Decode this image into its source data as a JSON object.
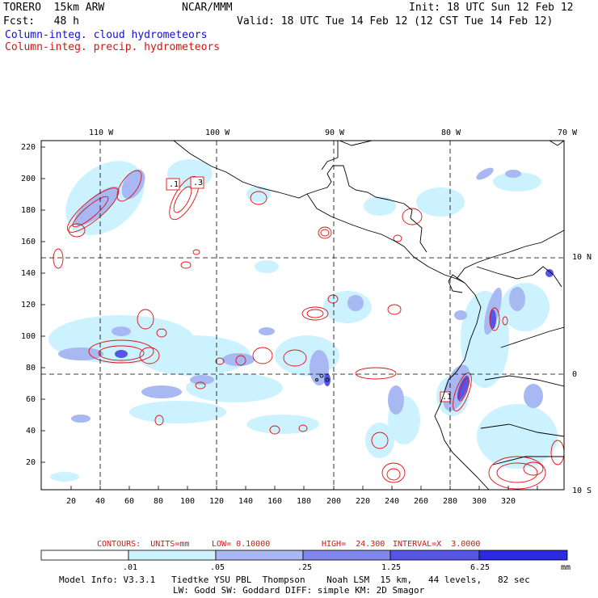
{
  "header": {
    "model": "TORERO  15km ARW",
    "org": "NCAR/MMM",
    "init": "Init: 18 UTC Sun 12 Feb 12",
    "fcst": "Fcst:   48 h",
    "valid": "Valid: 18 UTC Tue 14 Feb 12 (12 CST Tue 14 Feb 12)",
    "legend_cloud": "Column-integ. cloud hydrometeors",
    "legend_precip": "Column-integ. precip. hydrometeors"
  },
  "axes": {
    "top_lon": [
      "110 W",
      "100 W",
      "90 W",
      "80 W",
      "70 W"
    ],
    "left_y": [
      "220",
      "200",
      "180",
      "160",
      "140",
      "120",
      "100",
      "80",
      "60",
      "40",
      "20"
    ],
    "bottom_x": [
      "20",
      "40",
      "60",
      "80",
      "100",
      "120",
      "140",
      "160",
      "180",
      "200",
      "220",
      "240",
      "260",
      "280",
      "300",
      "320"
    ],
    "right_lat": [
      "10 N",
      "0",
      "10 S"
    ]
  },
  "contour_labels": [
    ".1",
    ".3",
    ".1"
  ],
  "contours_info": {
    "units": "CONTOURS:  UNITS=mm",
    "low": "LOW= 0.10000",
    "high": "HIGH=  24.300",
    "interval": "INTERVAL=X  3.0000"
  },
  "colorbar": {
    "labels": [
      ".01",
      ".05",
      ".25",
      "1.25",
      "6.25"
    ],
    "unit": "mm",
    "colors": [
      "#ffffff",
      "#ccf2ff",
      "#a8b8f2",
      "#7f86ec",
      "#5555e8",
      "#2a2ae6"
    ]
  },
  "model_info": {
    "line1": "Model Info: V3.3.1   Tiedtke YSU PBL  Thompson    Noah LSM  15 km,   44 levels,   82 sec",
    "line2": "LW: Godd SW: Goddard DIFF: simple KM: 2D Smagor"
  },
  "colors": {
    "cloud": "#1010d0",
    "precip": "#e01010",
    "coast": "#000000"
  }
}
